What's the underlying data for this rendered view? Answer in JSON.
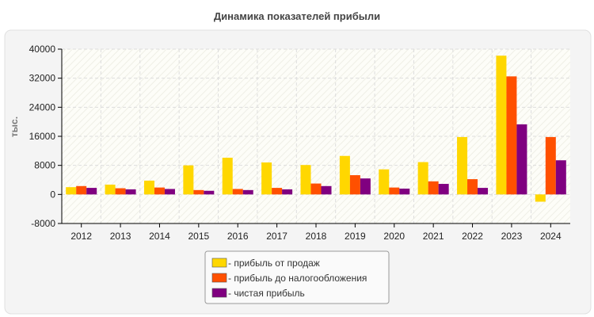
{
  "chart_data": {
    "type": "bar",
    "title": "Динамика показателей прибыли",
    "xlabel": "",
    "ylabel": "тыс.",
    "ylim": [
      -8000,
      40000
    ],
    "yticks": [
      -8000,
      0,
      8000,
      16000,
      24000,
      32000,
      40000
    ],
    "categories": [
      "2012",
      "2013",
      "2014",
      "2015",
      "2016",
      "2017",
      "2018",
      "2019",
      "2020",
      "2021",
      "2022",
      "2023",
      "2024"
    ],
    "series": [
      {
        "name": "- прибыль от продаж",
        "color": "#FFD700",
        "values": [
          2000,
          2700,
          3800,
          8000,
          10100,
          8800,
          8100,
          10600,
          6900,
          8900,
          15800,
          38200,
          -2000
        ]
      },
      {
        "name": "- прибыль до налогообложения",
        "color": "#FF5000",
        "values": [
          2300,
          1700,
          1900,
          1200,
          1500,
          1800,
          3000,
          5300,
          1900,
          3600,
          4200,
          32500,
          15800
        ]
      },
      {
        "name": "- чистая прибыль",
        "color": "#800080",
        "values": [
          1800,
          1400,
          1500,
          1000,
          1200,
          1400,
          2300,
          4400,
          1600,
          2900,
          1800,
          19300,
          9400
        ]
      }
    ],
    "grid": true,
    "legend_position": "bottom-center"
  }
}
